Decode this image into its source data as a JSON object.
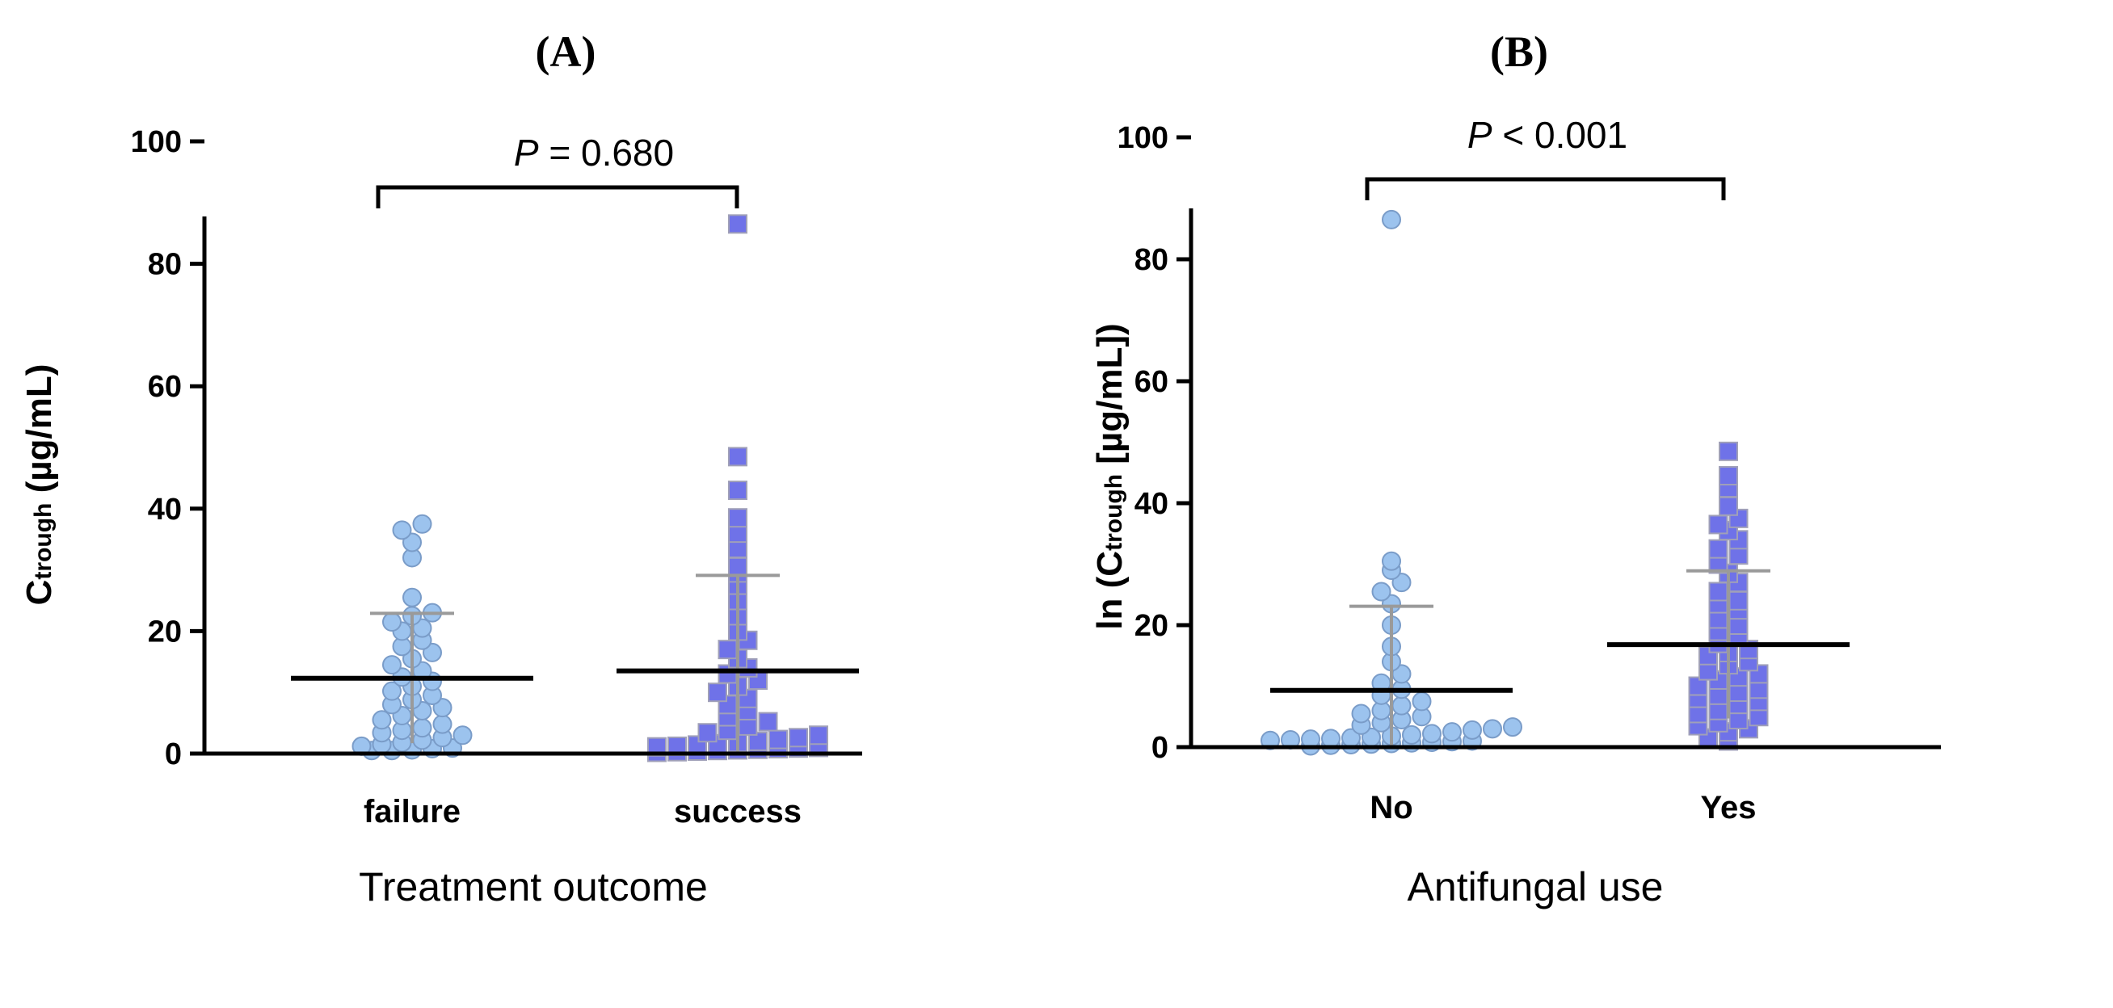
{
  "colors": {
    "circle_fill": "#9CC3EE",
    "circle_stroke": "#7A9CC8",
    "square_fill": "#6F72E8",
    "square_stroke": "#A0A0B8",
    "errorbar": "#9A9A9A",
    "axis": "#000000"
  },
  "chart_data": [
    {
      "type": "scatter",
      "panel_title": "(A)",
      "xlabel": "Treatment outcome",
      "ylabel_main": "C",
      "ylabel_sub": "trough",
      "ylabel_unit": " (µg/mL)",
      "ylim": [
        0,
        100
      ],
      "yticks": [
        0,
        20,
        40,
        60,
        80,
        100
      ],
      "ytick_labels": [
        "0",
        "20",
        "40",
        "60",
        "80",
        "100"
      ],
      "categories": [
        "failure",
        "success"
      ],
      "pvalue": {
        "prefix": "P",
        "text": " = 0.680"
      },
      "groups": [
        {
          "name": "failure",
          "marker": "circle",
          "mean": 12.3,
          "sd": 10.6,
          "values": [
            0.5,
            0.5,
            0.6,
            0.8,
            0.9,
            1.2,
            1.5,
            1.8,
            2.2,
            2.6,
            3.0,
            3.4,
            3.8,
            4.2,
            4.8,
            5.5,
            6.2,
            7.0,
            7.5,
            8.0,
            8.8,
            9.5,
            10.2,
            11.0,
            11.8,
            12.5,
            13.5,
            14.5,
            15.5,
            16.5,
            17.5,
            18.5,
            20.0,
            20.5,
            21.5,
            22.5,
            23.0,
            25.5,
            32.0,
            34.5,
            36.5,
            37.5
          ]
        },
        {
          "name": "success",
          "marker": "square",
          "mean": 13.5,
          "sd": 15.6,
          "values": [
            0.2,
            0.3,
            0.4,
            0.5,
            0.6,
            0.7,
            0.8,
            0.9,
            1.0,
            1.1,
            1.2,
            1.4,
            1.6,
            1.8,
            2.0,
            2.3,
            2.6,
            3.0,
            3.4,
            3.8,
            4.5,
            5.2,
            6.0,
            7.0,
            8.0,
            9.0,
            10.0,
            11.0,
            12.0,
            13.0,
            14.0,
            15.5,
            17.0,
            18.5,
            20.0,
            22.5,
            25.0,
            27.5,
            29.5,
            30.5,
            33.5,
            36.0,
            38.5,
            43.0,
            48.5,
            86.5
          ]
        }
      ]
    },
    {
      "type": "scatter",
      "panel_title": "(B)",
      "xlabel": "Antifungal use",
      "ylabel_main": "ln (C",
      "ylabel_sub": "trough",
      "ylabel_unit": " [µg/mL])",
      "ylim": [
        0,
        100
      ],
      "yticks": [
        0,
        20,
        40,
        60,
        80,
        100
      ],
      "ytick_labels": [
        "0",
        "20",
        "40",
        "60",
        "80",
        "100"
      ],
      "categories": [
        "No",
        "Yes"
      ],
      "pvalue": {
        "prefix": "P",
        "text": " < 0.001"
      },
      "groups": [
        {
          "name": "No",
          "marker": "circle",
          "mean": 9.3,
          "sd": 13.8,
          "values": [
            0.2,
            0.3,
            0.4,
            0.5,
            0.6,
            0.7,
            0.8,
            0.9,
            1.0,
            1.1,
            1.2,
            1.3,
            1.4,
            1.5,
            1.6,
            1.8,
            2.0,
            2.2,
            2.5,
            2.8,
            3.0,
            3.3,
            3.6,
            4.0,
            4.5,
            5.0,
            5.5,
            6.0,
            6.8,
            7.5,
            8.5,
            9.5,
            10.5,
            12.0,
            14.0,
            16.5,
            20.0,
            23.5,
            25.5,
            27.0,
            29.0,
            30.5,
            86.5
          ]
        },
        {
          "name": "Yes",
          "marker": "square",
          "mean": 16.8,
          "sd": 12.1,
          "values": [
            1.0,
            1.5,
            2.5,
            3.0,
            3.5,
            4.0,
            4.5,
            5.0,
            5.5,
            6.0,
            7.0,
            7.5,
            8.0,
            8.5,
            9.0,
            9.5,
            10.0,
            11.0,
            11.5,
            12.0,
            12.5,
            13.5,
            14.0,
            15.0,
            15.5,
            16.0,
            17.0,
            18.0,
            19.0,
            20.0,
            21.0,
            22.5,
            23.5,
            24.0,
            25.5,
            27.0,
            28.5,
            30.0,
            31.5,
            32.5,
            34.0,
            35.5,
            36.5,
            37.5,
            39.5,
            42.5,
            44.5,
            48.5
          ]
        }
      ]
    }
  ]
}
